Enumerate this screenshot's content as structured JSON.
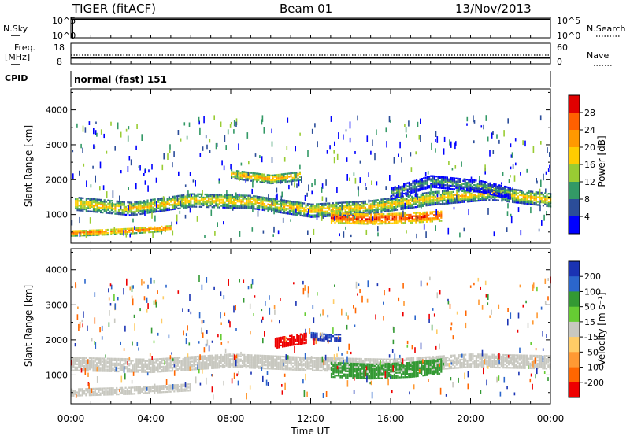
{
  "header": {
    "station": "TIGER (fitACF)",
    "beam": "Beam 01",
    "date": "13/Nov/2013"
  },
  "nsky_panel": {
    "left_label": "N.Sky",
    "left_ticks": [
      "10^5",
      "10^0"
    ],
    "right_label": "N.Search",
    "right_ticks": [
      "10^5",
      "10^0"
    ]
  },
  "freq_panel": {
    "left_label_line1": "Freq.",
    "left_label_line2": "[MHz]",
    "left_ticks": [
      "18",
      "8"
    ],
    "right_label": "Nave",
    "right_ticks": [
      "60",
      "0"
    ]
  },
  "cpid_panel": {
    "label": "CPID",
    "value": "normal (fast) 151"
  },
  "power_colorbar": {
    "label": "Power [dB]",
    "ticks": [
      "28",
      "24",
      "20",
      "16",
      "12",
      "8",
      "4"
    ],
    "colors": [
      "#e00000",
      "#ff6000",
      "#ff9900",
      "#ffcc00",
      "#99cc33",
      "#339966",
      "#2b4d99",
      "#0000ff"
    ]
  },
  "velocity_colorbar": {
    "label": "Velocity [m s⁻¹]",
    "ticks": [
      "200",
      "100",
      "50",
      "15",
      "-15",
      "-50",
      "-100",
      "-200"
    ],
    "colors": [
      "#1a33b3",
      "#2b66cc",
      "#339933",
      "#66cc33",
      "#c8c8c0",
      "#ffcc66",
      "#ff9933",
      "#ff6600",
      "#ee0000"
    ]
  },
  "colors": {
    "ground_grey": "#c8c8c0",
    "axis": "#000000"
  },
  "chart_data": [
    {
      "type": "heatmap",
      "title": "Power",
      "xlabel": "",
      "ylabel": "Slant Range [km]",
      "xlim": [
        0,
        24
      ],
      "ylim": [
        180,
        4600
      ],
      "xticks": [
        0,
        4,
        8,
        12,
        16,
        20,
        24
      ],
      "yticks": [
        1000,
        2000,
        3000,
        4000
      ],
      "ytick_labels": [
        "1000",
        "2000",
        "3000",
        "4000"
      ],
      "bands": [
        {
          "name": "near-range",
          "x": [
            0,
            1.5,
            3,
            5
          ],
          "center_km": [
            450,
            480,
            520,
            600
          ],
          "width_km": 160,
          "power_db": 26
        },
        {
          "name": "main",
          "x": [
            0.2,
            3,
            6,
            9,
            12,
            15,
            18,
            21,
            24
          ],
          "center_km": [
            1300,
            1150,
            1400,
            1350,
            1100,
            1200,
            1450,
            1600,
            1400
          ],
          "width_km": 380,
          "power_db": 20
        },
        {
          "name": "strong-echo",
          "x": [
            13,
            15,
            17,
            18.5
          ],
          "center_km": [
            900,
            860,
            900,
            950
          ],
          "width_km": 300,
          "power_db": 29
        },
        {
          "name": "upper",
          "x": [
            8,
            10,
            11.5
          ],
          "center_km": [
            2150,
            2000,
            2100
          ],
          "width_km": 250,
          "power_db": 22
        },
        {
          "name": "upper-right",
          "x": [
            16,
            18,
            20.5,
            22
          ],
          "center_km": [
            1600,
            1950,
            1800,
            1600
          ],
          "width_km": 350,
          "power_db": 12
        }
      ]
    },
    {
      "type": "heatmap",
      "title": "Velocity",
      "xlabel": "Time UT",
      "ylabel": "Slant Range [km]",
      "xlim": [
        0,
        24
      ],
      "ylim": [
        180,
        4600
      ],
      "xticks": [
        0,
        4,
        8,
        12,
        16,
        20,
        24
      ],
      "xtick_labels": [
        "00:00",
        "04:00",
        "08:00",
        "12:00",
        "16:00",
        "20:00",
        "00:00"
      ],
      "yticks": [
        1000,
        2000,
        3000,
        4000
      ],
      "ytick_labels": [
        "1000",
        "2000",
        "3000",
        "4000"
      ],
      "bands": [
        {
          "name": "grey-main",
          "x": [
            0,
            4,
            8,
            12,
            16,
            20,
            24
          ],
          "center_km": [
            1300,
            1250,
            1400,
            1300,
            1250,
            1400,
            1350
          ],
          "width_km": 380,
          "velocity": 0
        },
        {
          "name": "grey-lower",
          "x": [
            0,
            3,
            6
          ],
          "center_km": [
            500,
            550,
            650
          ],
          "width_km": 220,
          "velocity": 0
        },
        {
          "name": "green",
          "x": [
            13,
            15,
            17,
            18.5
          ],
          "center_km": [
            1150,
            1100,
            1150,
            1250
          ],
          "width_km": 450,
          "velocity": 60
        },
        {
          "name": "red-patch",
          "x": [
            10.2,
            11,
            11.8
          ],
          "center_km": [
            1900,
            1980,
            2050
          ],
          "width_km": 300,
          "velocity": -200
        },
        {
          "name": "blue-patch",
          "x": [
            12,
            12.8,
            13.5
          ],
          "center_km": [
            2100,
            2050,
            2050
          ],
          "width_km": 200,
          "velocity": 180
        }
      ]
    }
  ]
}
